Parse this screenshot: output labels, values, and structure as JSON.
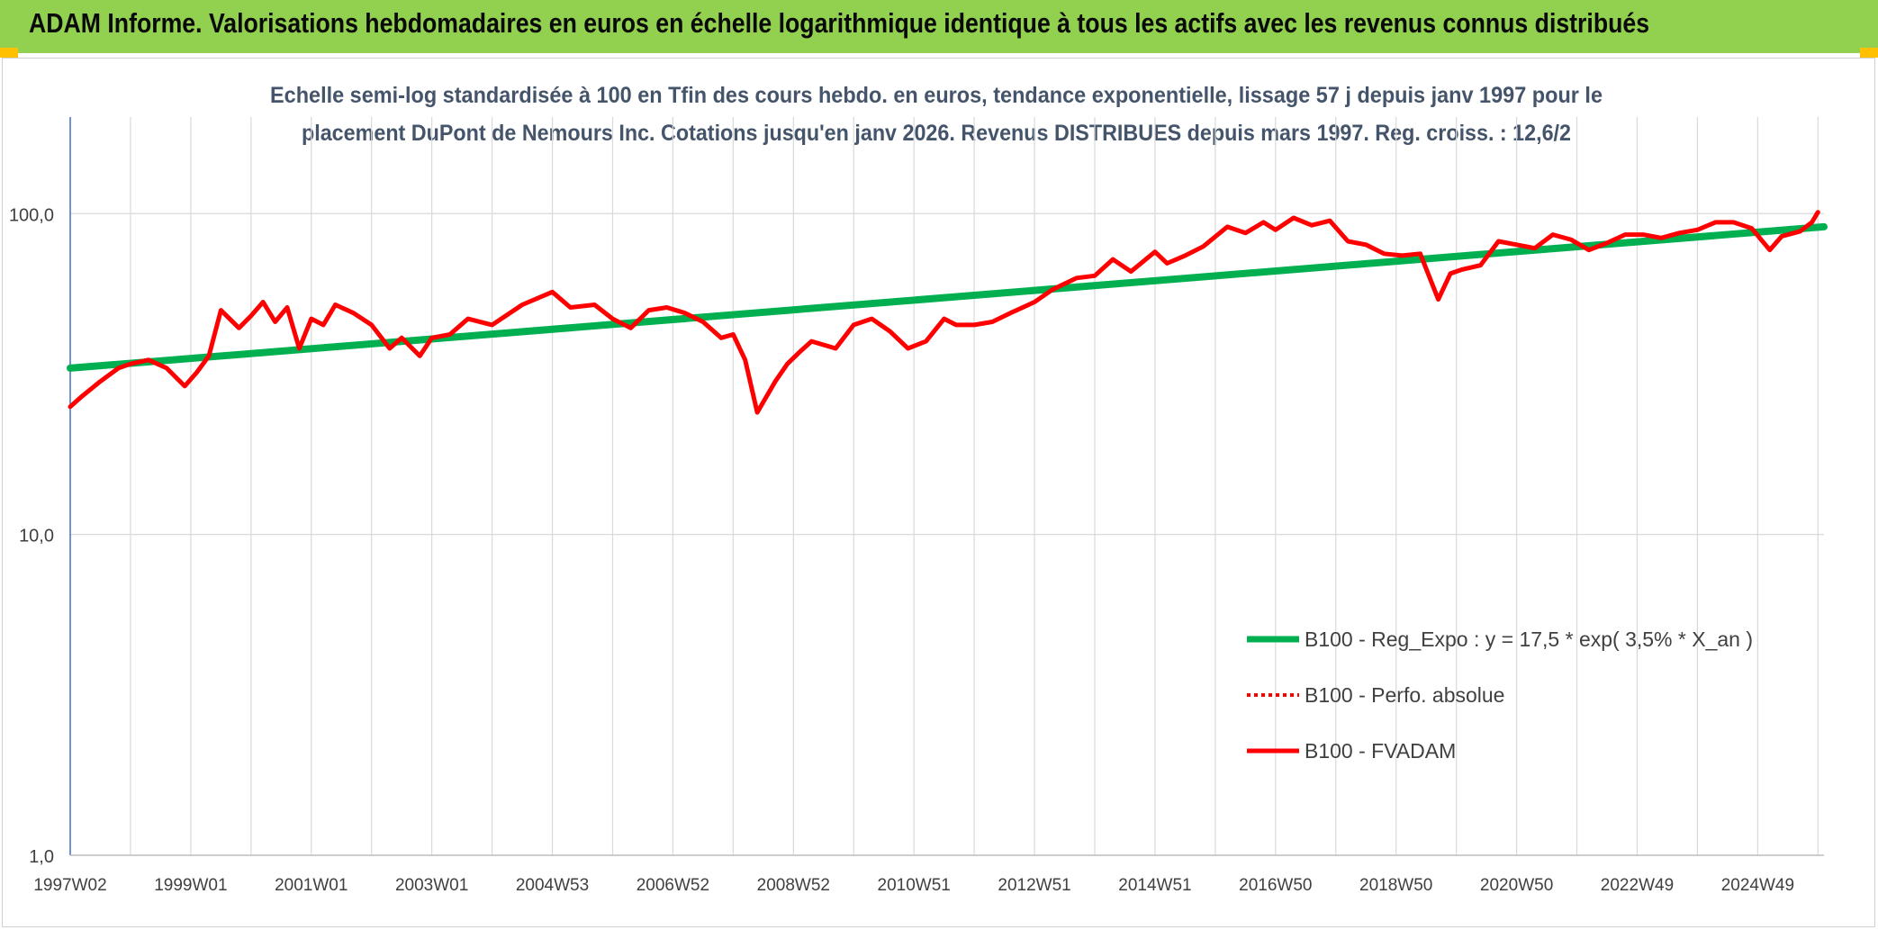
{
  "header": {
    "banner_title": "ADAM Informe. Valorisations hebdomadaires en euros en échelle logarithmique identique à tous les actifs avec les revenus connus distribués"
  },
  "colors": {
    "banner_bg": "#92d050",
    "corner": "#ffc000",
    "regression": "#00b050",
    "fvadam": "#ff0000",
    "perfo": "#ff0000",
    "grid": "#d9d9d9",
    "axis": "#4472c4",
    "text": "#404040",
    "title_text": "#44546a"
  },
  "chart_data": {
    "type": "line",
    "scale": "log",
    "title_line1": "Echelle semi-log standardisée à 100 en Tfin des cours hebdo. en euros, tendance exponentielle, lissage 57 j depuis janv 1997 pour le",
    "title_line2": "placement DuPont de Nemours Inc. Cotations jusqu'en janv 2026. Revenus DISTRIBUES depuis mars 1997. Reg. croiss. : 12,6/2",
    "ylim": [
      1,
      200
    ],
    "y_ticks": [
      {
        "value": 1,
        "label": "1,0"
      },
      {
        "value": 10,
        "label": "10,0"
      },
      {
        "value": 100,
        "label": "100,0"
      }
    ],
    "xlim": [
      1997.0,
      2026.1
    ],
    "x_ticks": [
      {
        "value": 1997.0,
        "label": "1997W02"
      },
      {
        "value": 1999.0,
        "label": "1999W01"
      },
      {
        "value": 2001.0,
        "label": "2001W01"
      },
      {
        "value": 2003.0,
        "label": "2003W01"
      },
      {
        "value": 2005.0,
        "label": "2004W53"
      },
      {
        "value": 2007.0,
        "label": "2006W52"
      },
      {
        "value": 2009.0,
        "label": "2008W52"
      },
      {
        "value": 2011.0,
        "label": "2010W51"
      },
      {
        "value": 2013.0,
        "label": "2012W51"
      },
      {
        "value": 2015.0,
        "label": "2014W51"
      },
      {
        "value": 2017.0,
        "label": "2016W50"
      },
      {
        "value": 2019.0,
        "label": "2018W50"
      },
      {
        "value": 2021.0,
        "label": "2020W50"
      },
      {
        "value": 2023.0,
        "label": "2022W49"
      },
      {
        "value": 2025.0,
        "label": "2024W49"
      }
    ],
    "x_grid": [
      1997.0,
      1998.0,
      1999.0,
      2000.0,
      2001.0,
      2002.0,
      2003.0,
      2004.0,
      2005.0,
      2006.0,
      2007.0,
      2008.0,
      2009.0,
      2010.0,
      2011.0,
      2012.0,
      2013.0,
      2014.0,
      2015.0,
      2016.0,
      2017.0,
      2018.0,
      2019.0,
      2020.0,
      2021.0,
      2022.0,
      2023.0,
      2024.0,
      2025.0,
      2026.0
    ],
    "legend_position": "bottom-right",
    "series": [
      {
        "name": "B100 - Reg_Expo : y = 17,5 * exp( 3,5% *  X_an )",
        "style": "solid-thick",
        "x": [
          1997.0,
          2026.1
        ],
        "values": [
          33,
          91
        ]
      },
      {
        "name": "B100 - Perfo. absolue",
        "style": "dotted",
        "x": [],
        "values": []
      },
      {
        "name": "B100 - FVADAM",
        "style": "solid",
        "x": [
          1997.0,
          1997.2,
          1997.5,
          1997.8,
          1998.0,
          1998.3,
          1998.6,
          1998.9,
          1999.1,
          1999.3,
          1999.5,
          1999.8,
          2000.0,
          2000.2,
          2000.4,
          2000.6,
          2000.8,
          2001.0,
          2001.2,
          2001.4,
          2001.7,
          2002.0,
          2002.3,
          2002.5,
          2002.8,
          2003.0,
          2003.3,
          2003.6,
          2004.0,
          2004.5,
          2005.0,
          2005.3,
          2005.7,
          2006.0,
          2006.3,
          2006.6,
          2006.9,
          2007.2,
          2007.5,
          2007.8,
          2008.0,
          2008.2,
          2008.4,
          2008.7,
          2008.9,
          2009.1,
          2009.3,
          2009.7,
          2010.0,
          2010.3,
          2010.6,
          2010.9,
          2011.2,
          2011.5,
          2011.7,
          2012.0,
          2012.3,
          2012.6,
          2013.0,
          2013.3,
          2013.7,
          2014.0,
          2014.3,
          2014.6,
          2015.0,
          2015.2,
          2015.5,
          2015.8,
          2016.2,
          2016.5,
          2016.8,
          2017.0,
          2017.3,
          2017.6,
          2017.9,
          2018.2,
          2018.5,
          2018.8,
          2019.1,
          2019.4,
          2019.7,
          2019.9,
          2020.1,
          2020.4,
          2020.7,
          2021.0,
          2021.3,
          2021.6,
          2021.9,
          2022.2,
          2022.5,
          2022.8,
          2023.1,
          2023.4,
          2023.7,
          2024.0,
          2024.3,
          2024.6,
          2024.9,
          2025.2,
          2025.4,
          2025.7,
          2025.9,
          2026.0
        ],
        "values": [
          25,
          27,
          30,
          33,
          34,
          35,
          33,
          29,
          32,
          36,
          50,
          44,
          48,
          53,
          46,
          51,
          38,
          47,
          45,
          52,
          49,
          45,
          38,
          41,
          36,
          41,
          42,
          47,
          45,
          52,
          57,
          51,
          52,
          47,
          44,
          50,
          51,
          49,
          46,
          41,
          42,
          35,
          24,
          30,
          34,
          37,
          40,
          38,
          45,
          47,
          43,
          38,
          40,
          47,
          45,
          45,
          46,
          49,
          53,
          58,
          63,
          64,
          72,
          66,
          76,
          70,
          74,
          79,
          91,
          87,
          94,
          89,
          97,
          92,
          95,
          82,
          80,
          75,
          74,
          75,
          54,
          65,
          67,
          69,
          82,
          80,
          78,
          86,
          83,
          77,
          81,
          86,
          86,
          84,
          87,
          89,
          94,
          94,
          90,
          77,
          85,
          88,
          94,
          101
        ]
      }
    ]
  }
}
